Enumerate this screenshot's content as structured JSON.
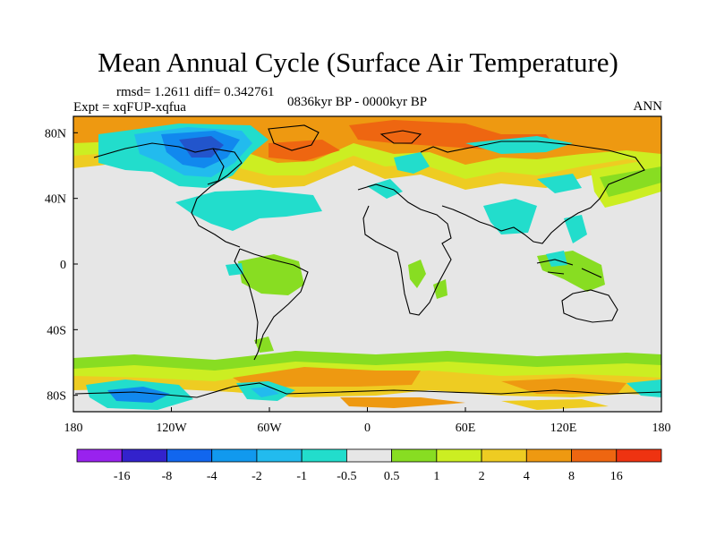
{
  "figure": {
    "title": "Mean Annual Cycle (Surface Air Temperature)",
    "stats": "rmsd= 1.2611 diff= 0.342761",
    "experiment": "Expt = xqFUP-xqfua",
    "period": "0836kyr BP - 0000kyr BP",
    "season": "ANN"
  },
  "map": {
    "projection": "cylindrical equidistant",
    "lon_range": [
      -180,
      180
    ],
    "lat_range": [
      -90,
      90
    ],
    "x_tick_labels": [
      "180",
      "120W",
      "60W",
      "0",
      "60E",
      "120E",
      "180"
    ],
    "x_tick_values": [
      -180,
      -120,
      -60,
      0,
      60,
      120,
      180
    ],
    "y_tick_labels": [
      "80N",
      "40N",
      "0",
      "40S",
      "80S"
    ],
    "y_tick_values": [
      80,
      40,
      0,
      -40,
      -80
    ],
    "colors": {
      "neutral": "#e6e6e6",
      "pos1": "#88dd22",
      "pos2": "#ccee22",
      "pos4": "#eecc22",
      "pos8": "#ee9911",
      "pos16": "#ee6611",
      "neg1": "#22ddcc",
      "neg2": "#22bbee",
      "neg4": "#1188ee",
      "neg8": "#2255cc"
    }
  },
  "colorbar": {
    "labels": [
      "-16",
      "-8",
      "-4",
      "-2",
      "-1",
      "-0.5",
      "0.5",
      "1",
      "2",
      "4",
      "8",
      "16"
    ],
    "colors": [
      "#9922ee",
      "#3322cc",
      "#1166ee",
      "#1199ee",
      "#22bbee",
      "#22ddcc",
      "#e6e6e6",
      "#88dd22",
      "#ccee22",
      "#eecc22",
      "#ee9911",
      "#ee6611",
      "#ee3311"
    ]
  }
}
